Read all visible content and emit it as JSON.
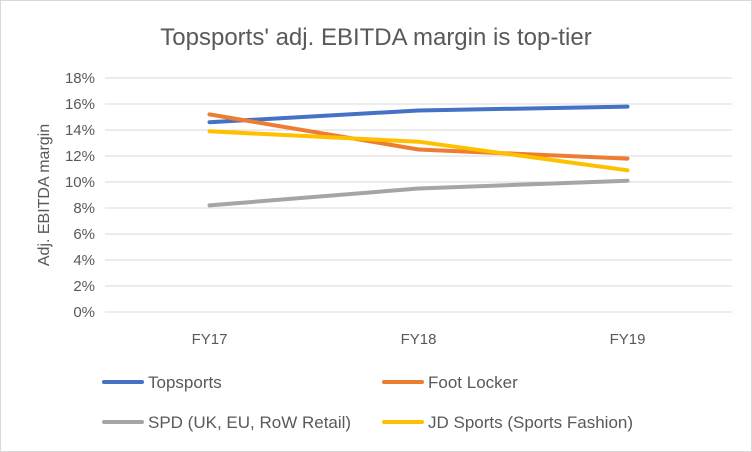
{
  "chart_data": {
    "type": "line",
    "title": "Topsports' adj. EBITDA margin is top-tier",
    "xlabel": "",
    "ylabel": "Adj. EBITDA margin",
    "categories": [
      "FY17",
      "FY18",
      "FY19"
    ],
    "ylim": [
      0,
      18
    ],
    "yticks": [
      0,
      2,
      4,
      6,
      8,
      10,
      12,
      14,
      16,
      18
    ],
    "ytick_labels": [
      "0%",
      "2%",
      "4%",
      "6%",
      "8%",
      "10%",
      "12%",
      "14%",
      "16%",
      "18%"
    ],
    "grid": true,
    "legend_position": "bottom",
    "series": [
      {
        "name": "Topsports",
        "color": "#4472c4",
        "values": [
          14.6,
          15.5,
          15.8
        ]
      },
      {
        "name": "Foot Locker",
        "color": "#ed7d31",
        "values": [
          15.2,
          12.5,
          11.8
        ]
      },
      {
        "name": "SPD (UK, EU, RoW Retail)",
        "color": "#a5a5a5",
        "values": [
          8.2,
          9.5,
          10.1
        ]
      },
      {
        "name": "JD Sports (Sports Fashion)",
        "color": "#ffc000",
        "values": [
          13.9,
          13.1,
          10.9
        ]
      }
    ]
  }
}
